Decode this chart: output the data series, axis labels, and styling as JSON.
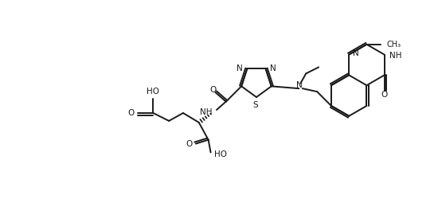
{
  "bg_color": "#ffffff",
  "line_color": "#1a1a1a",
  "line_width": 1.4,
  "font_size": 7.5,
  "fig_width": 5.5,
  "fig_height": 2.5,
  "xlim": [
    0,
    55
  ],
  "ylim": [
    0,
    25
  ]
}
